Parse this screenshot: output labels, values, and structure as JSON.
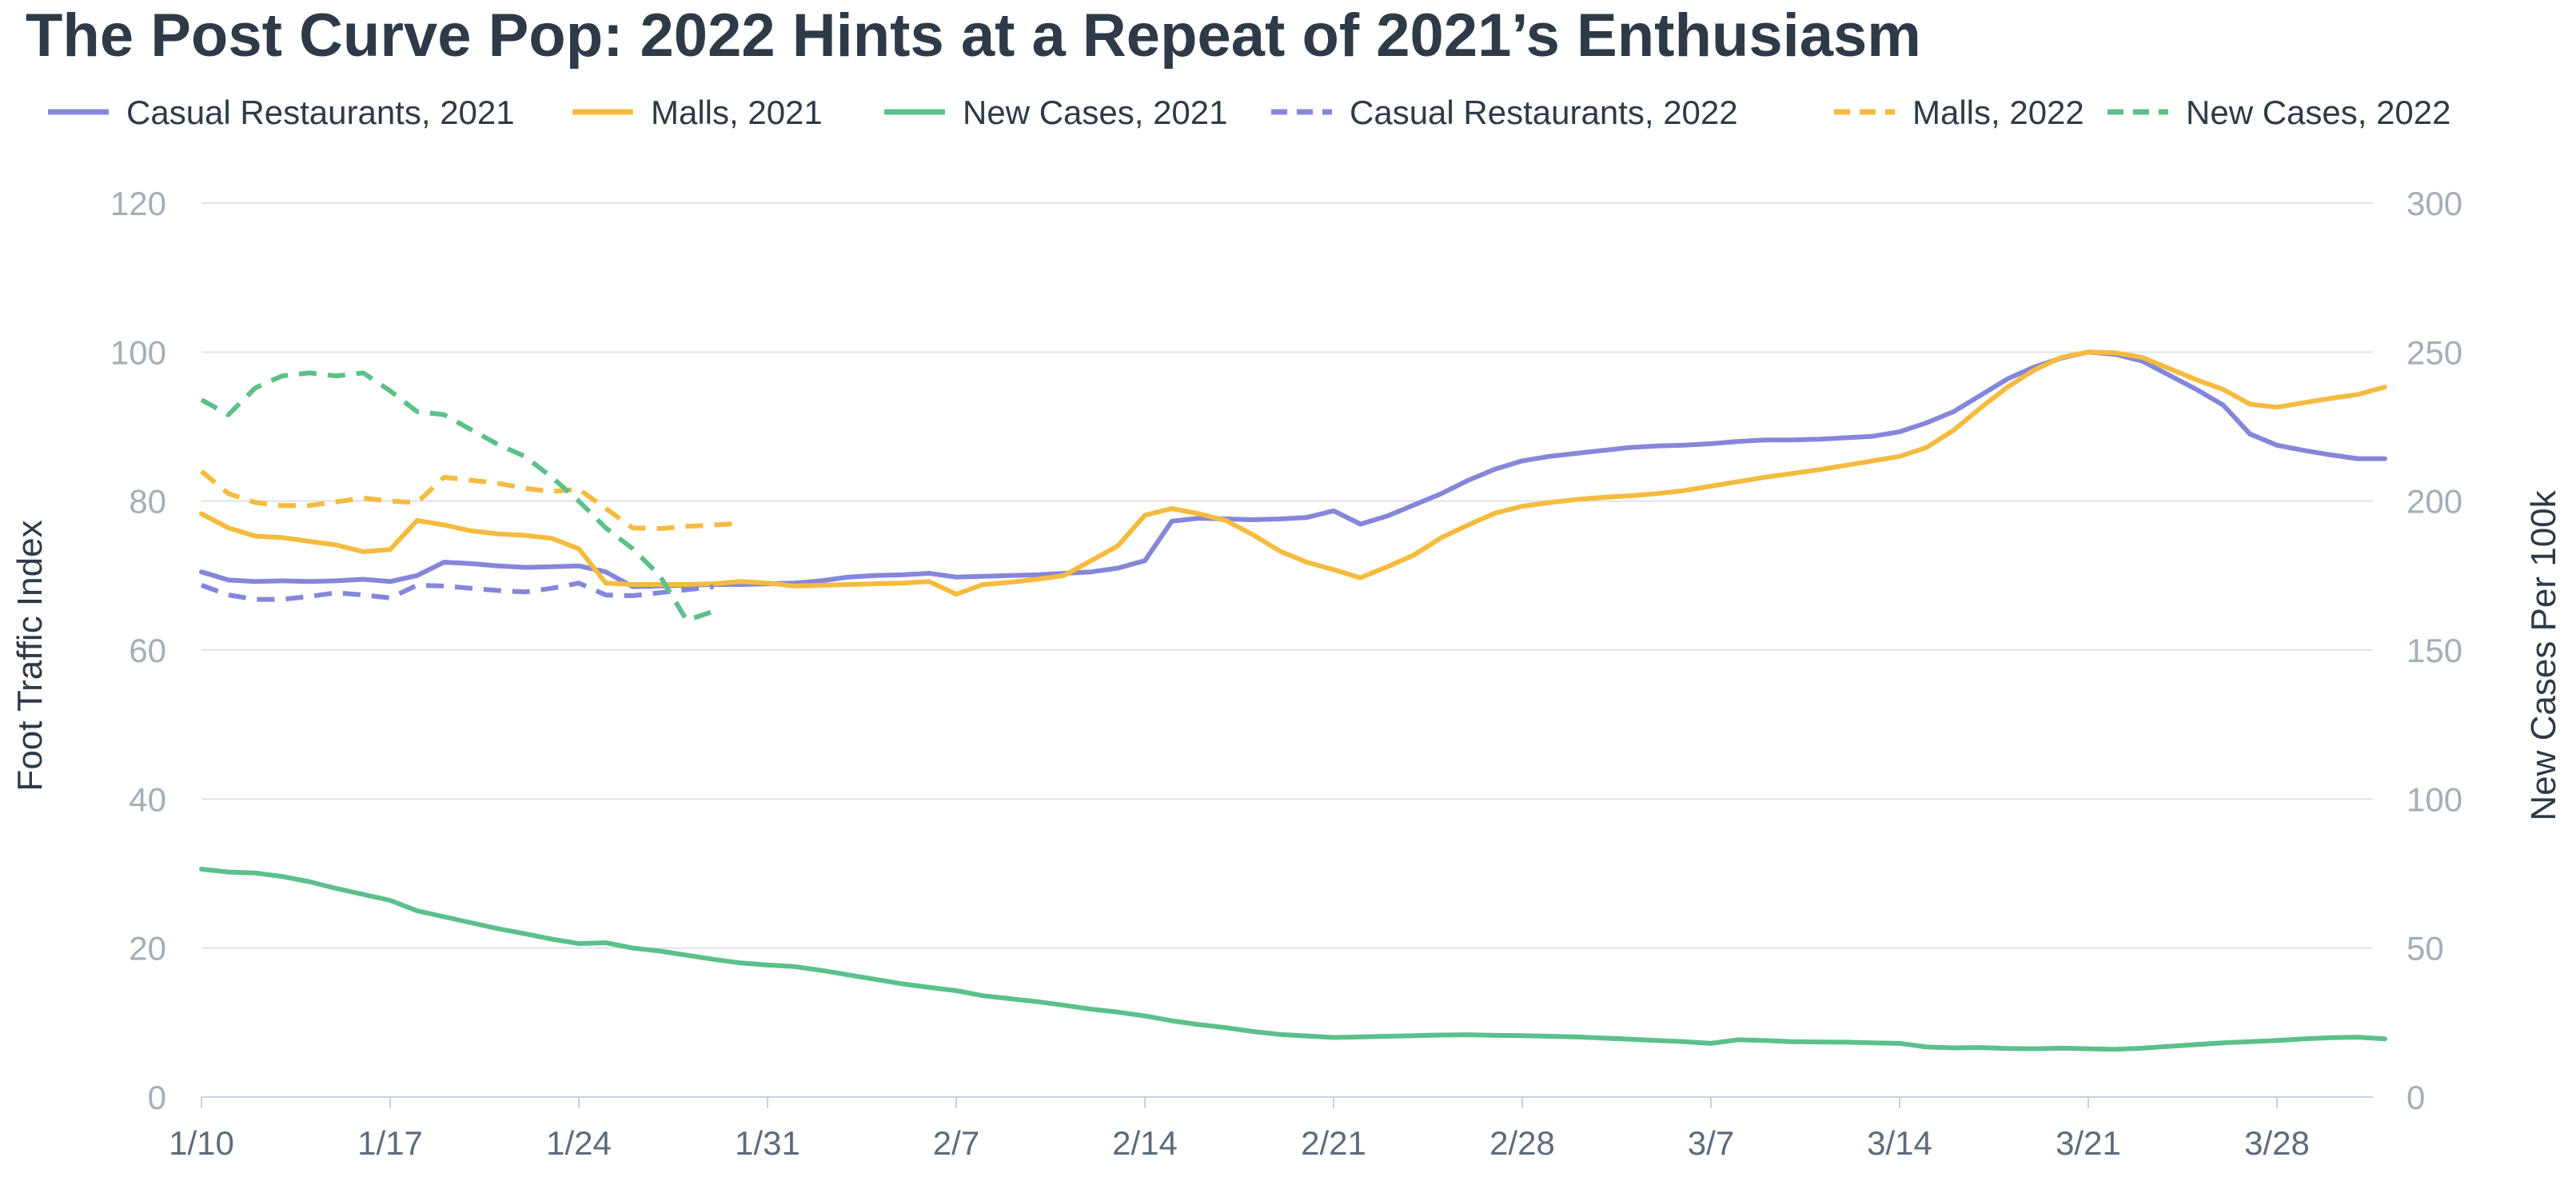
{
  "chart_data": {
    "type": "line",
    "title": "The Post Curve Pop: 2022 Hints at a Repeat of 2021’s Enthusiasm",
    "ylabel_left": "Foot Traffic Index",
    "ylabel_right": "New Cases Per 100k",
    "ylim_left": [
      0,
      120
    ],
    "ylim_right": [
      0,
      300
    ],
    "yticks_left": [
      "0",
      "20",
      "40",
      "60",
      "80",
      "100",
      "120"
    ],
    "yticks_right": [
      "0",
      "50",
      "100",
      "150",
      "200",
      "250",
      "300"
    ],
    "xlim": [
      0,
      84
    ],
    "xticks": [
      {
        "x": 0,
        "label": "1/10"
      },
      {
        "x": 7,
        "label": "1/17"
      },
      {
        "x": 14,
        "label": "1/24"
      },
      {
        "x": 21,
        "label": "1/31"
      },
      {
        "x": 28,
        "label": "2/7"
      },
      {
        "x": 35,
        "label": "2/14"
      },
      {
        "x": 42,
        "label": "2/21"
      },
      {
        "x": 49,
        "label": "2/28"
      },
      {
        "x": 56,
        "label": "3/7"
      },
      {
        "x": 63,
        "label": "3/14"
      },
      {
        "x": 70,
        "label": "3/21"
      },
      {
        "x": 77,
        "label": "3/28"
      }
    ],
    "grid": true,
    "legend_position": "top",
    "series": [
      {
        "name": "Casual Restaurants, 2021",
        "color": "#8487d9",
        "dash": "solid",
        "axis": "left",
        "points": [
          [
            0,
            70.5
          ],
          [
            1,
            69.4
          ],
          [
            2,
            69.2
          ],
          [
            3,
            69.3
          ],
          [
            4,
            69.2
          ],
          [
            5,
            69.3
          ],
          [
            6,
            69.5
          ],
          [
            7,
            69.2
          ],
          [
            8,
            70
          ],
          [
            9,
            71.8
          ],
          [
            10,
            71.6
          ],
          [
            11,
            71.3
          ],
          [
            12,
            71.1
          ],
          [
            13,
            71.2
          ],
          [
            14,
            71.3
          ],
          [
            15,
            70.5
          ],
          [
            16,
            68.5
          ],
          [
            17,
            68.6
          ],
          [
            18,
            68.7
          ],
          [
            19,
            68.8
          ],
          [
            20,
            68.8
          ],
          [
            21,
            68.9
          ],
          [
            22,
            69
          ],
          [
            23,
            69.3
          ],
          [
            24,
            69.8
          ],
          [
            25,
            70
          ],
          [
            26,
            70.1
          ],
          [
            27,
            70.3
          ],
          [
            28,
            69.8
          ],
          [
            29,
            69.9
          ],
          [
            30,
            70
          ],
          [
            31,
            70.1
          ],
          [
            32,
            70.3
          ],
          [
            33,
            70.5
          ],
          [
            34,
            71
          ],
          [
            35,
            72
          ],
          [
            36,
            77.3
          ],
          [
            37,
            77.7
          ],
          [
            38,
            77.6
          ],
          [
            39,
            77.5
          ],
          [
            40,
            77.6
          ],
          [
            41,
            77.8
          ],
          [
            42,
            78.7
          ],
          [
            43,
            76.9
          ],
          [
            44,
            78
          ],
          [
            45,
            79.5
          ],
          [
            46,
            81
          ],
          [
            47,
            82.8
          ],
          [
            48,
            84.3
          ],
          [
            49,
            85.4
          ],
          [
            50,
            86
          ],
          [
            51,
            86.4
          ],
          [
            52,
            86.8
          ],
          [
            53,
            87.2
          ],
          [
            54,
            87.4
          ],
          [
            55,
            87.5
          ],
          [
            56,
            87.7
          ],
          [
            57,
            88
          ],
          [
            58,
            88.2
          ],
          [
            59,
            88.2
          ],
          [
            60,
            88.3
          ],
          [
            61,
            88.5
          ],
          [
            62,
            88.7
          ],
          [
            63,
            89.3
          ],
          [
            64,
            90.5
          ],
          [
            65,
            92
          ],
          [
            66,
            94.2
          ],
          [
            67,
            96.4
          ],
          [
            68,
            98
          ],
          [
            69,
            99.2
          ],
          [
            70,
            100
          ],
          [
            71,
            99.7
          ],
          [
            72,
            98.8
          ],
          [
            73,
            96.9
          ],
          [
            74,
            95
          ],
          [
            75,
            92.9
          ],
          [
            76,
            89
          ],
          [
            77,
            87.5
          ],
          [
            78,
            86.8
          ],
          [
            79,
            86.2
          ],
          [
            80,
            85.7
          ],
          [
            81,
            85.7
          ]
        ]
      },
      {
        "name": "Malls, 2021",
        "color": "#f4bb3f",
        "dash": "solid",
        "axis": "left",
        "points": [
          [
            0,
            78.3
          ],
          [
            1,
            76.4
          ],
          [
            2,
            75.3
          ],
          [
            3,
            75.1
          ],
          [
            4,
            74.6
          ],
          [
            5,
            74.1
          ],
          [
            6,
            73.2
          ],
          [
            7,
            73.5
          ],
          [
            8,
            77.4
          ],
          [
            9,
            76.8
          ],
          [
            10,
            76
          ],
          [
            11,
            75.6
          ],
          [
            12,
            75.4
          ],
          [
            13,
            75
          ],
          [
            14,
            73.6
          ],
          [
            15,
            69
          ],
          [
            16,
            68.8
          ],
          [
            17,
            68.8
          ],
          [
            18,
            68.8
          ],
          [
            19,
            68.9
          ],
          [
            20,
            69.2
          ],
          [
            21,
            69
          ],
          [
            22,
            68.6
          ],
          [
            23,
            68.7
          ],
          [
            24,
            68.8
          ],
          [
            25,
            68.9
          ],
          [
            26,
            69
          ],
          [
            27,
            69.2
          ],
          [
            28,
            67.5
          ],
          [
            29,
            68.8
          ],
          [
            30,
            69.1
          ],
          [
            31,
            69.5
          ],
          [
            32,
            70
          ],
          [
            33,
            72
          ],
          [
            34,
            74
          ],
          [
            35,
            78.1
          ],
          [
            36,
            79
          ],
          [
            37,
            78.3
          ],
          [
            38,
            77.4
          ],
          [
            39,
            75.5
          ],
          [
            40,
            73.3
          ],
          [
            41,
            71.8
          ],
          [
            42,
            70.8
          ],
          [
            43,
            69.7
          ],
          [
            44,
            71.2
          ],
          [
            45,
            72.8
          ],
          [
            46,
            75.1
          ],
          [
            47,
            76.8
          ],
          [
            48,
            78.4
          ],
          [
            49,
            79.3
          ],
          [
            50,
            79.8
          ],
          [
            51,
            80.2
          ],
          [
            52,
            80.5
          ],
          [
            53,
            80.7
          ],
          [
            54,
            81
          ],
          [
            55,
            81.4
          ],
          [
            56,
            82
          ],
          [
            57,
            82.6
          ],
          [
            58,
            83.2
          ],
          [
            59,
            83.7
          ],
          [
            60,
            84.2
          ],
          [
            61,
            84.8
          ],
          [
            62,
            85.4
          ],
          [
            63,
            86
          ],
          [
            64,
            87.2
          ],
          [
            65,
            89.5
          ],
          [
            66,
            92.5
          ],
          [
            67,
            95.3
          ],
          [
            68,
            97.6
          ],
          [
            69,
            99.3
          ],
          [
            70,
            100
          ],
          [
            71,
            99.9
          ],
          [
            72,
            99.3
          ],
          [
            73,
            97.8
          ],
          [
            74,
            96.3
          ],
          [
            75,
            95
          ],
          [
            76,
            93
          ],
          [
            77,
            92.6
          ],
          [
            78,
            93.2
          ],
          [
            79,
            93.8
          ],
          [
            80,
            94.3
          ],
          [
            81,
            95.3
          ]
        ]
      },
      {
        "name": "New Cases, 2021",
        "color": "#5cc08a",
        "dash": "solid",
        "axis": "right",
        "points": [
          [
            0,
            76.5
          ],
          [
            1,
            75.5
          ],
          [
            2,
            75.2
          ],
          [
            3,
            74
          ],
          [
            4,
            72.3
          ],
          [
            5,
            70
          ],
          [
            6,
            68
          ],
          [
            7,
            66
          ],
          [
            8,
            62.5
          ],
          [
            9,
            60.5
          ],
          [
            10,
            58.5
          ],
          [
            11,
            56.5
          ],
          [
            12,
            54.8
          ],
          [
            13,
            53
          ],
          [
            14,
            51.5
          ],
          [
            15,
            51.8
          ],
          [
            16,
            50
          ],
          [
            17,
            49
          ],
          [
            18,
            47.6
          ],
          [
            19,
            46.2
          ],
          [
            20,
            45
          ],
          [
            21,
            44.3
          ],
          [
            22,
            43.8
          ],
          [
            23,
            42.5
          ],
          [
            24,
            41
          ],
          [
            25,
            39.5
          ],
          [
            26,
            38
          ],
          [
            27,
            36.8
          ],
          [
            28,
            35.7
          ],
          [
            29,
            34
          ],
          [
            30,
            33
          ],
          [
            31,
            32
          ],
          [
            32,
            30.8
          ],
          [
            33,
            29.5
          ],
          [
            34,
            28.5
          ],
          [
            35,
            27.2
          ],
          [
            36,
            25.6
          ],
          [
            37,
            24.3
          ],
          [
            38,
            23.3
          ],
          [
            39,
            22
          ],
          [
            40,
            21
          ],
          [
            41,
            20.5
          ],
          [
            42,
            20
          ],
          [
            43,
            20.2
          ],
          [
            44,
            20.4
          ],
          [
            45,
            20.6
          ],
          [
            46,
            20.8
          ],
          [
            47,
            20.9
          ],
          [
            48,
            20.7
          ],
          [
            49,
            20.6
          ],
          [
            50,
            20.4
          ],
          [
            51,
            20.2
          ],
          [
            52,
            19.8
          ],
          [
            53,
            19.4
          ],
          [
            54,
            19
          ],
          [
            55,
            18.6
          ],
          [
            56,
            18
          ],
          [
            57,
            19.2
          ],
          [
            58,
            19
          ],
          [
            59,
            18.6
          ],
          [
            60,
            18.5
          ],
          [
            61,
            18.4
          ],
          [
            62,
            18.2
          ],
          [
            63,
            18
          ],
          [
            64,
            16.8
          ],
          [
            65,
            16.5
          ],
          [
            66,
            16.6
          ],
          [
            67,
            16.3
          ],
          [
            68,
            16.2
          ],
          [
            69,
            16.4
          ],
          [
            70,
            16.2
          ],
          [
            71,
            16
          ],
          [
            72,
            16.4
          ],
          [
            73,
            17
          ],
          [
            74,
            17.6
          ],
          [
            75,
            18.2
          ],
          [
            76,
            18.6
          ],
          [
            77,
            19
          ],
          [
            78,
            19.5
          ],
          [
            79,
            19.9
          ],
          [
            80,
            20.1
          ],
          [
            81,
            19.5
          ]
        ]
      },
      {
        "name": "Casual Restaurants, 2022",
        "color": "#8487d9",
        "dash": "dashed",
        "axis": "left",
        "points": [
          [
            0,
            68.7
          ],
          [
            1,
            67.4
          ],
          [
            2,
            66.8
          ],
          [
            3,
            66.8
          ],
          [
            4,
            67.2
          ],
          [
            5,
            67.7
          ],
          [
            6,
            67.4
          ],
          [
            7,
            67
          ],
          [
            8,
            68.7
          ],
          [
            9,
            68.6
          ],
          [
            10,
            68.3
          ],
          [
            11,
            68
          ],
          [
            12,
            67.8
          ],
          [
            13,
            68.3
          ],
          [
            14,
            69
          ],
          [
            15,
            67.4
          ],
          [
            16,
            67.3
          ],
          [
            17,
            67.7
          ],
          [
            18,
            68.1
          ],
          [
            19,
            68.5
          ]
        ]
      },
      {
        "name": "Malls, 2022",
        "color": "#f4bb3f",
        "dash": "dashed",
        "axis": "left",
        "points": [
          [
            0,
            84
          ],
          [
            1,
            81
          ],
          [
            2,
            79.8
          ],
          [
            3,
            79.4
          ],
          [
            4,
            79.4
          ],
          [
            5,
            79.9
          ],
          [
            6,
            80.4
          ],
          [
            7,
            80
          ],
          [
            8,
            79.8
          ],
          [
            9,
            83.2
          ],
          [
            10,
            82.8
          ],
          [
            11,
            82.4
          ],
          [
            12,
            81.7
          ],
          [
            13,
            81.3
          ],
          [
            14,
            81.6
          ],
          [
            15,
            79
          ],
          [
            16,
            76.4
          ],
          [
            17,
            76.3
          ],
          [
            18,
            76.6
          ],
          [
            19,
            76.8
          ],
          [
            20,
            77
          ]
        ]
      },
      {
        "name": "New Cases, 2022",
        "color": "#5cc08a",
        "dash": "dashed",
        "axis": "right",
        "points": [
          [
            0,
            234
          ],
          [
            1,
            229
          ],
          [
            2,
            238
          ],
          [
            3,
            242
          ],
          [
            4,
            243
          ],
          [
            5,
            242
          ],
          [
            6,
            243
          ],
          [
            7,
            237
          ],
          [
            8,
            230
          ],
          [
            9,
            229
          ],
          [
            10,
            224
          ],
          [
            11,
            219
          ],
          [
            12,
            215
          ],
          [
            13,
            208
          ],
          [
            14,
            200
          ],
          [
            15,
            191
          ],
          [
            16,
            184
          ],
          [
            17,
            175
          ],
          [
            18,
            160
          ],
          [
            19,
            163
          ]
        ]
      }
    ]
  }
}
